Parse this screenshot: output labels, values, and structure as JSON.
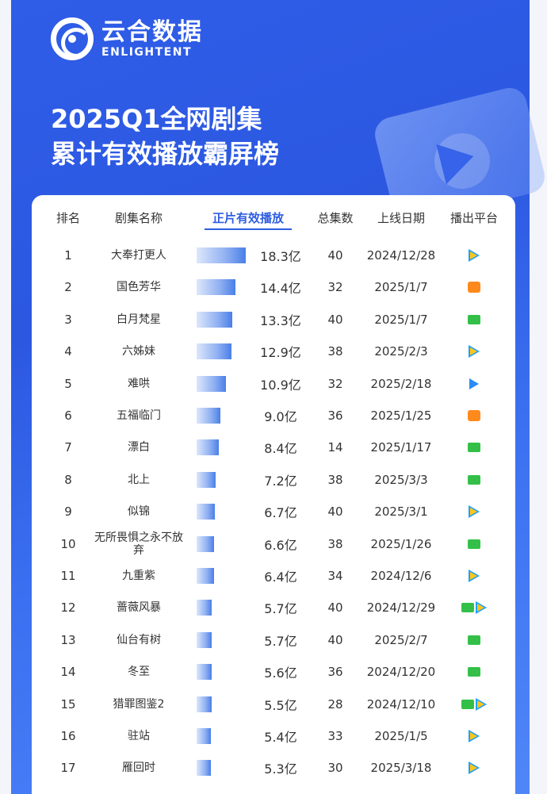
{
  "brand": {
    "name_cn": "云合数据",
    "name_en": "ENLIGHTENT"
  },
  "title": {
    "line1": "2025Q1全网剧集",
    "line2": "累计有效播放霸屏榜"
  },
  "headers": {
    "rank": "排名",
    "name": "剧集名称",
    "plays": "正片有效播放",
    "episodes": "总集数",
    "date": "上线日期",
    "platform": "播出平台"
  },
  "colors": {
    "blue": "#2f5de8",
    "accent": "#2e5ee0"
  },
  "unit_max_plays": 18.3,
  "rows": [
    {
      "rank": "1",
      "name": "大奉打更人",
      "plays": "18.3亿",
      "plays_num": 18.3,
      "episodes": "40",
      "date": "2024/12/28",
      "platforms": [
        "tencent-icon"
      ]
    },
    {
      "rank": "2",
      "name": "国色芳华",
      "plays": "14.4亿",
      "plays_num": 14.4,
      "episodes": "32",
      "date": "2025/1/7",
      "platforms": [
        "mango-icon"
      ]
    },
    {
      "rank": "3",
      "name": "白月梵星",
      "plays": "13.3亿",
      "plays_num": 13.3,
      "episodes": "40",
      "date": "2025/1/7",
      "platforms": [
        "iqiyi-icon"
      ]
    },
    {
      "rank": "4",
      "name": "六姊妹",
      "plays": "12.9亿",
      "plays_num": 12.9,
      "episodes": "38",
      "date": "2025/2/3",
      "platforms": [
        "tencent-icon"
      ]
    },
    {
      "rank": "5",
      "name": "难哄",
      "plays": "10.9亿",
      "plays_num": 10.9,
      "episodes": "32",
      "date": "2025/2/18",
      "platforms": [
        "youku-icon"
      ]
    },
    {
      "rank": "6",
      "name": "五福临门",
      "plays": "9.0亿",
      "plays_num": 9.0,
      "episodes": "36",
      "date": "2025/1/25",
      "platforms": [
        "mango-icon"
      ]
    },
    {
      "rank": "7",
      "name": "漂白",
      "plays": "8.4亿",
      "plays_num": 8.4,
      "episodes": "14",
      "date": "2025/1/17",
      "platforms": [
        "iqiyi-icon"
      ]
    },
    {
      "rank": "8",
      "name": "北上",
      "plays": "7.2亿",
      "plays_num": 7.2,
      "episodes": "38",
      "date": "2025/3/3",
      "platforms": [
        "iqiyi-icon"
      ]
    },
    {
      "rank": "9",
      "name": "似锦",
      "plays": "6.7亿",
      "plays_num": 6.7,
      "episodes": "40",
      "date": "2025/3/1",
      "platforms": [
        "tencent-icon"
      ]
    },
    {
      "rank": "10",
      "name": "无所畏惧之永不放弃",
      "plays": "6.6亿",
      "plays_num": 6.6,
      "episodes": "38",
      "date": "2025/1/26",
      "platforms": [
        "iqiyi-icon"
      ]
    },
    {
      "rank": "11",
      "name": "九重紫",
      "plays": "6.4亿",
      "plays_num": 6.4,
      "episodes": "34",
      "date": "2024/12/6",
      "platforms": [
        "tencent-icon"
      ]
    },
    {
      "rank": "12",
      "name": "蔷薇风暴",
      "plays": "5.7亿",
      "plays_num": 5.7,
      "episodes": "40",
      "date": "2024/12/29",
      "platforms": [
        "iqiyi-icon",
        "tencent-icon"
      ]
    },
    {
      "rank": "13",
      "name": "仙台有树",
      "plays": "5.7亿",
      "plays_num": 5.7,
      "episodes": "40",
      "date": "2025/2/7",
      "platforms": [
        "iqiyi-icon"
      ]
    },
    {
      "rank": "14",
      "name": "冬至",
      "plays": "5.6亿",
      "plays_num": 5.6,
      "episodes": "36",
      "date": "2024/12/20",
      "platforms": [
        "iqiyi-icon"
      ]
    },
    {
      "rank": "15",
      "name": "猎罪图鉴2",
      "plays": "5.5亿",
      "plays_num": 5.5,
      "episodes": "28",
      "date": "2024/12/10",
      "platforms": [
        "iqiyi-icon",
        "tencent-icon"
      ]
    },
    {
      "rank": "16",
      "name": "驻站",
      "plays": "5.4亿",
      "plays_num": 5.4,
      "episodes": "33",
      "date": "2025/1/5",
      "platforms": [
        "tencent-icon"
      ]
    },
    {
      "rank": "17",
      "name": "雁回时",
      "plays": "5.3亿",
      "plays_num": 5.3,
      "episodes": "30",
      "date": "2025/3/18",
      "platforms": [
        "tencent-icon"
      ]
    }
  ]
}
